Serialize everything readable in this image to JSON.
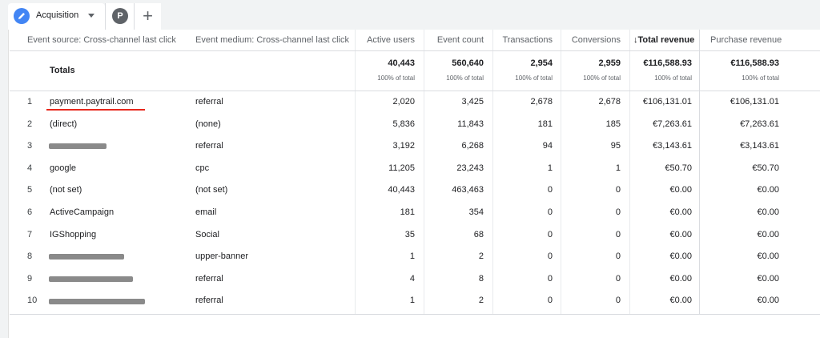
{
  "tabs": {
    "active_label": "Acquisition",
    "p_label": "P",
    "add_label": "+"
  },
  "columns": [
    "Event source: Cross-channel last click",
    "Event medium: Cross-channel last click",
    "Active users",
    "Event count",
    "Transactions",
    "Conversions",
    "↓Total revenue",
    "Purchase revenue"
  ],
  "totals": {
    "label": "Totals",
    "values": [
      "40,443",
      "560,640",
      "2,954",
      "2,959",
      "€116,588.93",
      "€116,588.93"
    ],
    "pct": "100% of total"
  },
  "rows": [
    {
      "num": "1",
      "source": "payment.paytrail.com",
      "medium": "referral",
      "users": "2,020",
      "events": "3,425",
      "transactions": "2,678",
      "conversions": "2,678",
      "total_revenue": "€106,131.01",
      "purchase_revenue": "€106,131.01"
    },
    {
      "num": "2",
      "source": "(direct)",
      "medium": "(none)",
      "users": "5,836",
      "events": "11,843",
      "transactions": "181",
      "conversions": "185",
      "total_revenue": "€7,263.61",
      "purchase_revenue": "€7,263.61"
    },
    {
      "num": "3",
      "source": "",
      "medium": "referral",
      "users": "3,192",
      "events": "6,268",
      "transactions": "94",
      "conversions": "95",
      "total_revenue": "€3,143.61",
      "purchase_revenue": "€3,143.61"
    },
    {
      "num": "4",
      "source": "google",
      "medium": "cpc",
      "users": "11,205",
      "events": "23,243",
      "transactions": "1",
      "conversions": "1",
      "total_revenue": "€50.70",
      "purchase_revenue": "€50.70"
    },
    {
      "num": "5",
      "source": "(not set)",
      "medium": "(not set)",
      "users": "40,443",
      "events": "463,463",
      "transactions": "0",
      "conversions": "0",
      "total_revenue": "€0.00",
      "purchase_revenue": "€0.00"
    },
    {
      "num": "6",
      "source": "ActiveCampaign",
      "medium": "email",
      "users": "181",
      "events": "354",
      "transactions": "0",
      "conversions": "0",
      "total_revenue": "€0.00",
      "purchase_revenue": "€0.00"
    },
    {
      "num": "7",
      "source": "IGShopping",
      "medium": "Social",
      "users": "35",
      "events": "68",
      "transactions": "0",
      "conversions": "0",
      "total_revenue": "€0.00",
      "purchase_revenue": "€0.00"
    },
    {
      "num": "8",
      "source": "",
      "medium": "upper-banner",
      "users": "1",
      "events": "2",
      "transactions": "0",
      "conversions": "0",
      "total_revenue": "€0.00",
      "purchase_revenue": "€0.00"
    },
    {
      "num": "9",
      "source": "",
      "medium": "referral",
      "users": "4",
      "events": "8",
      "transactions": "0",
      "conversions": "0",
      "total_revenue": "€0.00",
      "purchase_revenue": "€0.00"
    },
    {
      "num": "10",
      "source": "",
      "medium": "referral",
      "users": "1",
      "events": "2",
      "transactions": "0",
      "conversions": "0",
      "total_revenue": "€0.00",
      "purchase_revenue": "€0.00"
    }
  ],
  "icons": {
    "tab_icon": "pencil-icon",
    "add_icon": "plus-icon"
  },
  "colors": {
    "accent": "#4285f4",
    "annotation": "#e8271c"
  }
}
